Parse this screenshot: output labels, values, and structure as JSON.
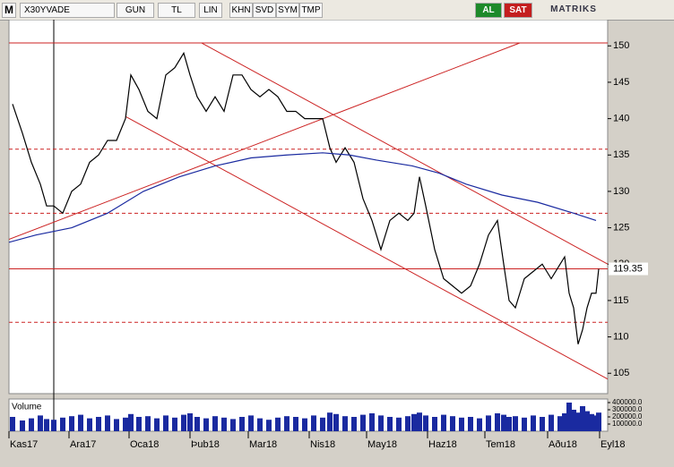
{
  "toolbar": {
    "logo": "M",
    "symbol": "X30YVADE",
    "buttons": [
      "GUN",
      "TL",
      "LIN",
      "KHN",
      "SVD",
      "SYM",
      "TMP"
    ],
    "buy": "AL",
    "sell": "SAT",
    "brand": "MATRIKS"
  },
  "chart_data": {
    "type": "line",
    "x": [
      4,
      15,
      25,
      35,
      42,
      50,
      60,
      70,
      80,
      90,
      100,
      110,
      120,
      130,
      136,
      145,
      155,
      165,
      175,
      185,
      195,
      202,
      210,
      220,
      230,
      240,
      250,
      260,
      270,
      280,
      290,
      300,
      310,
      320,
      330,
      340,
      350,
      358,
      365,
      375,
      385,
      395,
      405,
      415,
      425,
      435,
      445,
      452,
      458,
      465,
      475,
      485,
      495,
      505,
      515,
      525,
      535,
      545,
      552,
      558,
      565,
      575,
      585,
      595,
      605,
      615,
      620,
      625,
      630,
      635,
      640,
      645,
      650,
      655,
      658
    ],
    "series": [
      {
        "color": "#000000",
        "values": [
          142,
          138,
          134,
          131,
          128,
          128,
          127,
          130,
          131,
          134,
          135,
          137,
          137,
          140,
          146,
          144,
          141,
          140,
          146,
          147,
          149,
          146,
          143,
          141,
          143,
          141,
          146,
          146,
          144,
          143,
          144,
          143,
          141,
          141,
          140,
          140,
          140,
          136,
          134,
          136,
          134,
          129,
          126,
          122,
          126,
          127,
          126,
          127,
          132,
          128,
          122,
          118,
          117,
          116,
          117,
          120,
          124,
          126,
          120,
          115,
          114,
          118,
          119,
          120,
          118,
          120,
          121,
          116,
          114,
          109,
          111,
          114,
          116,
          116,
          119.35
        ]
      },
      {
        "color": "#1a2aa0",
        "x": [
          0,
          30,
          70,
          110,
          150,
          190,
          230,
          270,
          310,
          350,
          380,
          410,
          450,
          480,
          510,
          550,
          590,
          630,
          655
        ],
        "values": [
          123,
          124,
          125,
          127,
          130,
          132,
          133.5,
          134.6,
          135,
          135.3,
          135,
          134.3,
          133.5,
          132.5,
          131,
          129.5,
          128.5,
          127,
          126
        ]
      }
    ],
    "xlim": [
      0,
      668
    ],
    "xticks": [
      {
        "value": 0,
        "label": "Kas17"
      },
      {
        "value": 67,
        "label": "Ara17"
      },
      {
        "value": 134,
        "label": "Oca18"
      },
      {
        "value": 202,
        "label": "Þub18"
      },
      {
        "value": 267,
        "label": "Mar18"
      },
      {
        "value": 335,
        "label": "Nis18"
      },
      {
        "value": 399,
        "label": "May18"
      },
      {
        "value": 467,
        "label": "Haz18"
      },
      {
        "value": 531,
        "label": "Tem18"
      },
      {
        "value": 601,
        "label": "Aðu18"
      },
      {
        "value": 659,
        "label": "Eyl18"
      }
    ],
    "ylim": [
      102.2,
      153.6
    ],
    "yticks": [
      105,
      110,
      115,
      120,
      125,
      130,
      135,
      140,
      145,
      150
    ],
    "hlines": [
      {
        "value": 150.4,
        "color": "#cc2222",
        "dashed": false
      },
      {
        "value": 119.35,
        "color": "#cc2222",
        "dashed": false
      },
      {
        "value": 135.8,
        "color": "#cc2222",
        "dashed": true
      },
      {
        "value": 127,
        "color": "#cc2222",
        "dashed": true
      },
      {
        "value": 112,
        "color": "#cc2222",
        "dashed": true
      }
    ],
    "trendlines": [
      {
        "x": [
          0,
          570
        ],
        "y": [
          123.4,
          150.4
        ]
      },
      {
        "x": [
          215,
          668
        ],
        "y": [
          150.4,
          120
        ]
      },
      {
        "x": [
          130,
          668
        ],
        "y": [
          140.3,
          104.2
        ]
      }
    ],
    "volume_title": "Volume",
    "volume_color": "#1a2aa0",
    "volume": [
      200000,
      150000,
      180000,
      220000,
      170000,
      160000,
      190000,
      210000,
      230000,
      180000,
      200000,
      220000,
      170000,
      190000,
      240000,
      200000,
      210000,
      180000,
      220000,
      190000,
      230000,
      250000,
      200000,
      180000,
      210000,
      190000,
      170000,
      200000,
      220000,
      180000,
      160000,
      190000,
      210000,
      200000,
      180000,
      220000,
      190000,
      260000,
      240000,
      210000,
      200000,
      230000,
      250000,
      220000,
      200000,
      190000,
      210000,
      240000,
      260000,
      220000,
      200000,
      230000,
      210000,
      190000,
      200000,
      180000,
      220000,
      250000,
      230000,
      200000,
      210000,
      190000,
      220000,
      200000,
      230000,
      210000,
      250000,
      400000,
      300000,
      260000,
      350000,
      280000,
      240000,
      220000,
      260000
    ],
    "vlim": [
      0,
      450000
    ],
    "vticks": [
      {
        "value": 100000,
        "label": "100000.0"
      },
      {
        "value": 200000,
        "label": "200000.0"
      },
      {
        "value": 300000,
        "label": "300000.0"
      },
      {
        "value": 400000,
        "label": "400000.0"
      }
    ]
  }
}
